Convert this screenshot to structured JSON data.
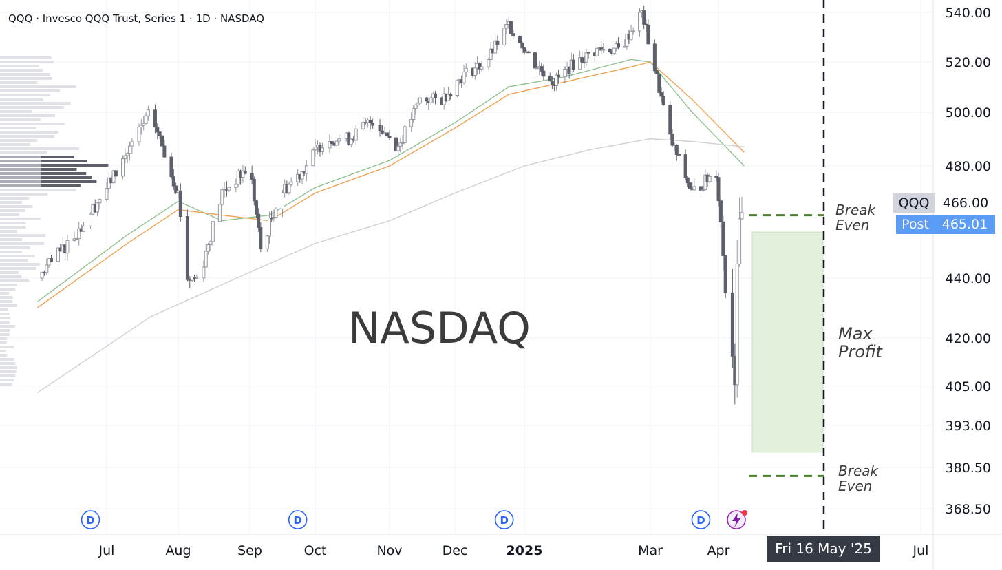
{
  "header": {
    "title": "QQQ · Invesco QQQ Trust, Series 1 · 1D · NASDAQ",
    "watermark": "NASDAQ"
  },
  "annotations": {
    "break_even_upper_line1": "Break",
    "break_even_upper_line2": "Even",
    "max_profit_line1": "Max",
    "max_profit_line2": "Profit",
    "break_even_lower_line1": "Break",
    "break_even_lower_line2": "Even"
  },
  "price_tags": {
    "symbol": "QQQ",
    "last_price": "466.00",
    "post_label": "Post",
    "post_price": "465.01"
  },
  "crosshair_date": "Fri 16 May '25",
  "colors": {
    "candle": "#9598a1",
    "candle_dark": "#5d606b",
    "ma_short": "#8fc18f",
    "ma_mid": "#f0a050",
    "ma_long": "#d0d0d0",
    "break_even_dash": "#4a7f2c",
    "profit_zone": "#e3f0dc",
    "post_tag": "#5b9cf6",
    "symbol_tag": "#d1d4dc",
    "dividend_marker": "#2962ff"
  },
  "chart_data": {
    "type": "candlestick",
    "symbol": "QQQ",
    "interval": "1D",
    "exchange": "NASDAQ",
    "y_axis": {
      "scale": "log",
      "ticks": [
        "540.00",
        "520.00",
        "500.00",
        "480.00",
        "440.00",
        "420.00",
        "405.00",
        "393.00",
        "380.50",
        "368.50"
      ]
    },
    "x_axis": {
      "ticks": [
        "Jul",
        "Aug",
        "Sep",
        "Oct",
        "Nov",
        "Dec",
        "2025",
        "Mar",
        "Apr",
        "Jul"
      ]
    },
    "dividend_markers": [
      "D",
      "D",
      "D",
      "D"
    ],
    "levels": {
      "break_even_upper": 462,
      "max_profit_top": 456,
      "max_profit_bottom": 385,
      "break_even_lower": 378
    },
    "price_path": {
      "dates": [
        "2024-06-01",
        "2024-06-10",
        "2024-06-20",
        "2024-07-01",
        "2024-07-10",
        "2024-07-20",
        "2024-08-01",
        "2024-08-05",
        "2024-08-10",
        "2024-08-20",
        "2024-09-01",
        "2024-09-06",
        "2024-09-15",
        "2024-09-25",
        "2024-10-05",
        "2024-10-15",
        "2024-10-25",
        "2024-11-05",
        "2024-11-15",
        "2024-11-25",
        "2024-12-05",
        "2024-12-15",
        "2024-12-25",
        "2025-01-05",
        "2025-01-15",
        "2025-01-25",
        "2025-02-05",
        "2025-02-15",
        "2025-02-25",
        "2025-03-01",
        "2025-03-10",
        "2025-03-20",
        "2025-03-31",
        "2025-04-04",
        "2025-04-08",
        "2025-04-09",
        "2025-04-12"
      ],
      "values": [
        440,
        448,
        458,
        472,
        485,
        500,
        470,
        440,
        440,
        470,
        480,
        450,
        470,
        478,
        490,
        490,
        497,
        487,
        505,
        505,
        515,
        520,
        535,
        520,
        512,
        520,
        525,
        525,
        540,
        525,
        490,
        470,
        478,
        440,
        410,
        448,
        466
      ]
    },
    "moving_averages": [
      {
        "name": "",
        "dates": [
          "2024-06-01",
          "2024-07-10",
          "2024-08-01",
          "2024-08-20",
          "2024-09-10",
          "2024-10-01",
          "2024-11-01",
          "2024-12-01",
          "2024-12-25",
          "2025-01-20",
          "2025-02-20",
          "2025-03-01",
          "2025-03-20",
          "2025-04-12"
        ],
        "values": [
          432,
          455,
          467,
          460,
          462,
          472,
          482,
          496,
          510,
          514,
          521,
          520,
          500,
          480
        ]
      },
      {
        "name": "",
        "dates": [
          "2024-06-01",
          "2024-07-10",
          "2024-08-01",
          "2024-08-20",
          "2024-09-10",
          "2024-10-01",
          "2024-11-01",
          "2024-12-01",
          "2024-12-25",
          "2025-01-20",
          "2025-02-20",
          "2025-03-01",
          "2025-03-20",
          "2025-04-12"
        ],
        "values": [
          430,
          452,
          464,
          462,
          460,
          470,
          480,
          494,
          507,
          512,
          518,
          520,
          505,
          485
        ]
      },
      {
        "name": "",
        "dates": [
          "2024-06-01",
          "2024-07-20",
          "2024-09-01",
          "2024-10-01",
          "2024-11-01",
          "2024-12-01",
          "2025-01-01",
          "2025-02-01",
          "2025-03-01",
          "2025-03-20",
          "2025-04-12"
        ],
        "values": [
          403,
          427,
          442,
          452,
          460,
          470,
          480,
          486,
          490,
          489,
          487
        ]
      }
    ]
  }
}
